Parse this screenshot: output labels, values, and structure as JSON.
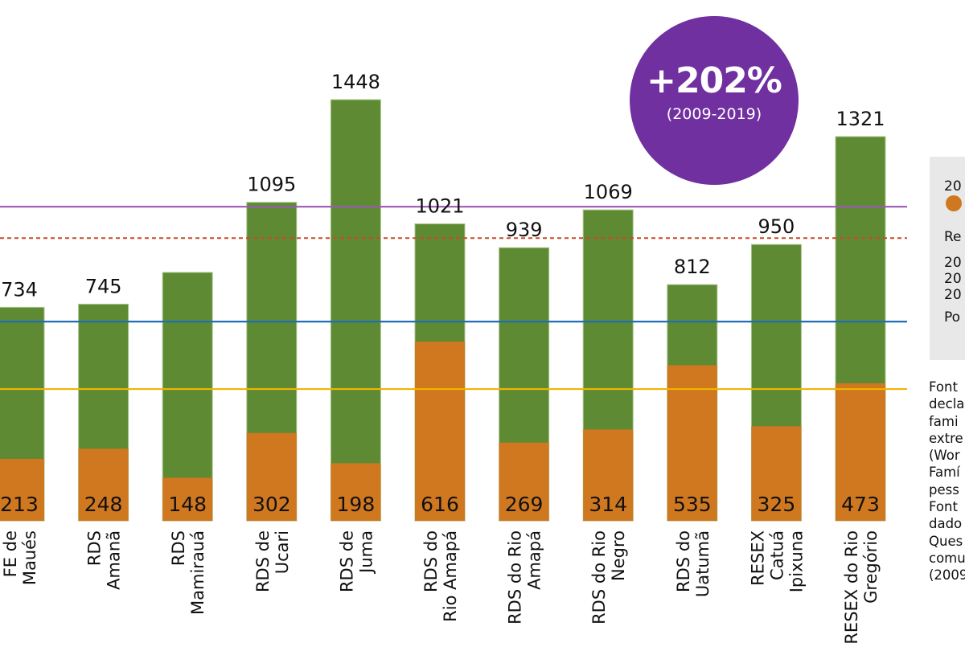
{
  "chart_data": {
    "type": "bar",
    "stacking": "overlay",
    "categories": [
      [
        "FE de",
        "Maués"
      ],
      [
        "RDS",
        "Amanã"
      ],
      [
        "RDS",
        "Mamirauá"
      ],
      [
        "RDS de",
        "Ucari"
      ],
      [
        "RDS de",
        "Juma"
      ],
      [
        "RDS do",
        "Rio Amapá"
      ],
      [
        "RDS do Rio",
        "Amapá"
      ],
      [
        "RDS do Rio",
        "Negro"
      ],
      [
        "RDS do",
        "Uatumã"
      ],
      [
        "RESEX",
        "Catuá",
        "Ipixuna"
      ],
      [
        "RESEX do Rio",
        "Gregório"
      ]
    ],
    "series": [
      {
        "name": "2019",
        "color": "#5e8a34",
        "values": [
          734,
          745,
          854,
          1095,
          1448,
          1021,
          939,
          1069,
          812,
          950,
          1321
        ],
        "labels": [
          "734",
          "745",
          null,
          "1095",
          "1448",
          "1021",
          "939",
          "1069",
          "812",
          "950",
          "1321"
        ]
      },
      {
        "name": "2009",
        "color": "#d07820",
        "values": [
          213,
          248,
          148,
          302,
          198,
          616,
          269,
          314,
          535,
          325,
          473
        ],
        "labels": [
          "213",
          "248",
          "148",
          "302",
          "198",
          "616",
          "269",
          "314",
          "535",
          "325",
          "473"
        ]
      }
    ],
    "reference_lines": [
      {
        "value": 1080,
        "color": "#9b59b6",
        "style": "solid"
      },
      {
        "value": 972,
        "color": "#c84a2c",
        "style": "dotted"
      },
      {
        "value": 685,
        "color": "#1f6fb5",
        "style": "solid"
      },
      {
        "value": 453,
        "color": "#f0b400",
        "style": "solid"
      }
    ],
    "ylim": [
      0,
      1448
    ],
    "grid": false,
    "title": "",
    "xlabel": "",
    "ylabel": ""
  },
  "badge": {
    "value": "+202%",
    "period": "(2009-2019)",
    "color": "#7030a0"
  },
  "legend_panel": {
    "lines": [
      "20",
      "Re",
      "20",
      "20",
      "20",
      "Po"
    ]
  },
  "source_note": {
    "lines": [
      "Font",
      "decla",
      "fami",
      "extre",
      "(Wor",
      "Famí",
      "pess",
      "Font",
      "dado",
      "Ques",
      "comu",
      "(2009"
    ]
  }
}
